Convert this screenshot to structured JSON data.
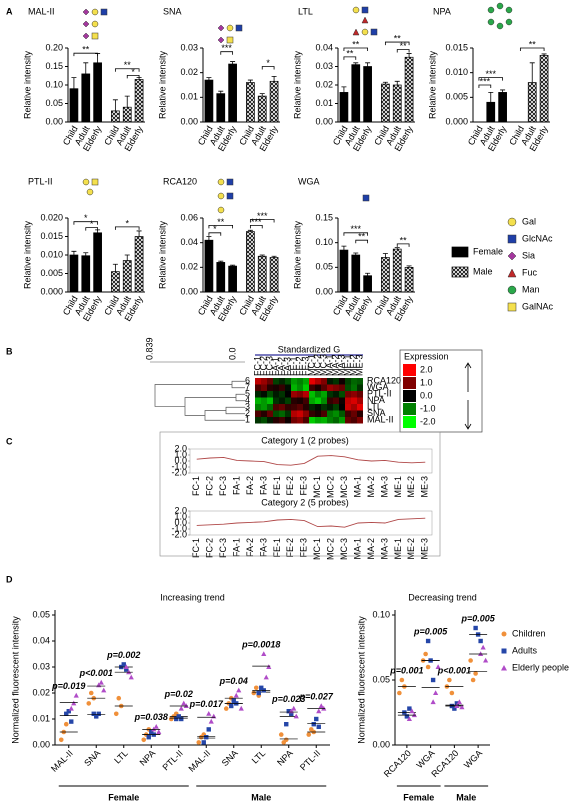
{
  "panel_labels": [
    "A",
    "B",
    "C",
    "D"
  ],
  "legend_a": {
    "series": [
      {
        "name": "Female",
        "color": "#000000"
      },
      {
        "name": "Male",
        "color": "#000000",
        "pattern": "crosshatch"
      }
    ]
  },
  "glycan_legend": [
    {
      "label": "Gal",
      "shape": "circle",
      "color": "#f4e04d"
    },
    {
      "label": "GlcNAc",
      "shape": "square",
      "color": "#1f3fa8"
    },
    {
      "label": "Sia",
      "shape": "diamond",
      "color": "#a4379e"
    },
    {
      "label": "Fuc",
      "shape": "triangle",
      "color": "#c0282a"
    },
    {
      "label": "Man",
      "shape": "circle",
      "color": "#2aa84a"
    },
    {
      "label": "GalNAc",
      "shape": "square",
      "color": "#f4e04d"
    }
  ],
  "chart_data": [
    {
      "type": "bar",
      "title": "MAL-II",
      "ylabel": "Relative intensity",
      "categories": [
        "Child",
        "Adult",
        "Elderly"
      ],
      "series": [
        {
          "color": "#000000",
          "values": [
            0.09,
            0.13,
            0.16
          ],
          "errors": [
            0.03,
            0.03,
            0.025
          ]
        },
        {
          "color": "#000000",
          "pattern": "crosshatch",
          "values": [
            0.03,
            0.04,
            0.115
          ],
          "errors": [
            0.03,
            0.03,
            0.005
          ]
        }
      ],
      "ylim": [
        0,
        0.2
      ],
      "yticks": [
        {
          "value": 0,
          "label": "0.00"
        },
        0.05,
        {
          "value": 0.1,
          "label": "0.10"
        },
        0.15,
        {
          "value": 0.2,
          "label": "0.20"
        }
      ],
      "annotations": [
        "**",
        "**",
        "*"
      ]
    },
    {
      "type": "bar",
      "title": "SNA",
      "ylabel": "Relative intensity",
      "categories": [
        "Child",
        "Adult",
        "Elderly"
      ],
      "series": [
        {
          "color": "#000000",
          "values": [
            0.017,
            0.0115,
            0.0235
          ],
          "errors": [
            0.001,
            0.001,
            0.001
          ]
        },
        {
          "color": "#000000",
          "pattern": "crosshatch",
          "values": [
            0.016,
            0.0105,
            0.0165
          ],
          "errors": [
            0.001,
            0.001,
            0.002
          ]
        }
      ],
      "ylim": [
        0,
        0.03
      ],
      "yticks": [
        {
          "value": 0,
          "label": "0.00"
        },
        0.01,
        0.02,
        0.03
      ],
      "annotations": [
        "***",
        "*"
      ]
    },
    {
      "type": "bar",
      "title": "LTL",
      "ylabel": "Relative intensity",
      "categories": [
        "Child",
        "Adult",
        "Elderly"
      ],
      "series": [
        {
          "color": "#000000",
          "values": [
            0.016,
            0.031,
            0.03
          ],
          "errors": [
            0.003,
            0.001,
            0.002
          ]
        },
        {
          "color": "#000000",
          "pattern": "crosshatch",
          "values": [
            0.0205,
            0.02,
            0.035
          ],
          "errors": [
            0.001,
            0.002,
            0.002
          ]
        }
      ],
      "ylim": [
        0,
        0.04
      ],
      "yticks": [
        {
          "value": 0,
          "label": "0.00"
        },
        0.01,
        0.02,
        0.03,
        0.04
      ],
      "annotations": [
        "**",
        "**",
        "**",
        "**"
      ]
    },
    {
      "type": "bar",
      "title": "NPA",
      "ylabel": "Relative intensity",
      "categories": [
        "Child",
        "Adult",
        "Elderly"
      ],
      "series": [
        {
          "color": "#000000",
          "values": [
            0,
            0.004,
            0.006
          ],
          "errors": [
            0,
            0.002,
            0.0005
          ]
        },
        {
          "color": "#000000",
          "pattern": "crosshatch",
          "values": [
            0,
            0.008,
            0.0135
          ],
          "errors": [
            0,
            0.004,
            0.0003
          ]
        }
      ],
      "ylim": [
        0,
        0.015
      ],
      "yticks": [
        {
          "value": 0,
          "label": "0.000"
        },
        0.005,
        {
          "value": 0.01,
          "label": "0.010"
        },
        0.015
      ],
      "annotations": [
        "***",
        "***",
        "**"
      ]
    },
    {
      "type": "bar",
      "title": "PTL-II",
      "ylabel": "Relative intensity",
      "categories": [
        "Child",
        "Adult",
        "Elderly"
      ],
      "series": [
        {
          "color": "#000000",
          "values": [
            0.01,
            0.0098,
            0.016
          ],
          "errors": [
            0.001,
            0.0008,
            0.0008
          ]
        },
        {
          "color": "#000000",
          "pattern": "crosshatch",
          "values": [
            0.0055,
            0.0085,
            0.015
          ],
          "errors": [
            0.002,
            0.0015,
            0.0015
          ]
        }
      ],
      "ylim": [
        0,
        0.02
      ],
      "yticks": [
        {
          "value": 0,
          "label": "0.000"
        },
        0.005,
        {
          "value": 0.01,
          "label": "0.010"
        },
        0.015,
        {
          "value": 0.02,
          "label": "0.020"
        }
      ],
      "annotations": [
        "*",
        "*",
        "*"
      ]
    },
    {
      "type": "bar",
      "title": "RCA120",
      "ylabel": "Relative intensity",
      "categories": [
        "Child",
        "Adult",
        "Elderly"
      ],
      "series": [
        {
          "color": "#000000",
          "values": [
            0.042,
            0.024,
            0.021
          ],
          "errors": [
            0.003,
            0.001,
            0.0008
          ]
        },
        {
          "color": "#000000",
          "pattern": "crosshatch",
          "values": [
            0.049,
            0.029,
            0.028
          ],
          "errors": [
            0.001,
            0.001,
            0.001
          ]
        }
      ],
      "ylim": [
        0,
        0.06
      ],
      "yticks": [
        {
          "value": 0,
          "label": "0.00"
        },
        0.02,
        0.04,
        0.06
      ],
      "annotations": [
        "**",
        "*",
        "***",
        "***"
      ]
    },
    {
      "type": "bar",
      "title": "WGA",
      "ylabel": "Relative intensity",
      "categories": [
        "Child",
        "Adult",
        "Elderly"
      ],
      "series": [
        {
          "color": "#000000",
          "values": [
            0.085,
            0.075,
            0.033
          ],
          "errors": [
            0.008,
            0.004,
            0.005
          ]
        },
        {
          "color": "#000000",
          "pattern": "crosshatch",
          "values": [
            0.07,
            0.087,
            0.05
          ],
          "errors": [
            0.008,
            0.003,
            0.003
          ]
        }
      ],
      "ylim": [
        0,
        0.15
      ],
      "yticks": [
        {
          "value": 0,
          "label": "0.00"
        },
        0.05,
        {
          "value": 0.1,
          "label": "0.10"
        },
        0.15
      ],
      "annotations": [
        "***",
        "**",
        "**"
      ]
    },
    {
      "type": "heatmap",
      "title": "Standardized G",
      "columns": [
        "FC-1",
        "FC-2",
        "FC-3",
        "FA-1",
        "FA-2",
        "FA-3",
        "FE-1",
        "FE-2",
        "FE-3",
        "MC-1",
        "MC-2",
        "MC-3",
        "MA-1",
        "MA-2",
        "MA-3",
        "ME-1",
        "ME-2",
        "ME-3"
      ],
      "rows": [
        "RCA120",
        "WGA",
        "PTL-II",
        "NPA",
        "LTL",
        "SNA",
        "MAL-II"
      ],
      "row_numbers": [
        "6",
        "7",
        "5",
        "4",
        "3",
        "2",
        "1"
      ],
      "values": [
        [
          1.5,
          1.2,
          0.8,
          -0.5,
          -0.3,
          -0.6,
          -1.2,
          -1.0,
          -1.3,
          1.8,
          1.4,
          1.0,
          -0.2,
          -0.4,
          0.1,
          -0.5,
          -0.8,
          -0.7
        ],
        [
          0.6,
          0.9,
          0.3,
          0.2,
          0.4,
          -0.1,
          -1.4,
          -1.1,
          -1.6,
          0.5,
          0.2,
          0.7,
          1.2,
          1.0,
          0.8,
          -0.6,
          -0.9,
          -0.4
        ],
        [
          -0.3,
          -0.1,
          -0.6,
          -0.2,
          -0.4,
          0.0,
          1.2,
          1.0,
          1.4,
          -1.5,
          -1.0,
          -1.3,
          -0.4,
          -0.2,
          -0.6,
          0.9,
          1.1,
          0.8
        ],
        [
          -1.4,
          -1.2,
          -1.5,
          -0.4,
          -0.2,
          -0.5,
          0.3,
          0.2,
          0.5,
          -1.3,
          -1.6,
          -1.1,
          0.4,
          0.6,
          0.1,
          1.5,
          1.7,
          1.3
        ],
        [
          -1.0,
          -1.2,
          -0.8,
          0.6,
          0.8,
          0.4,
          0.5,
          0.7,
          0.3,
          -0.3,
          -0.1,
          -0.4,
          -0.2,
          -0.5,
          0.0,
          1.6,
          1.3,
          1.8
        ],
        [
          0.6,
          0.3,
          0.8,
          -0.6,
          -0.8,
          -0.4,
          1.4,
          1.6,
          1.1,
          0.4,
          0.2,
          0.6,
          -0.9,
          -1.1,
          -0.7,
          0.5,
          0.8,
          0.3
        ],
        [
          -0.4,
          -0.6,
          -0.2,
          0.3,
          0.5,
          0.1,
          0.9,
          1.1,
          0.6,
          -1.6,
          -1.3,
          -1.4,
          -1.0,
          -0.8,
          -1.2,
          0.8,
          0.6,
          1.0
        ]
      ],
      "vlim": [
        -2,
        2
      ],
      "dendrogram_scale": [
        "0.839",
        "0.0"
      ],
      "legend_title": "Expression",
      "legend_ticks": [
        {
          "value": 2,
          "label": "2.0"
        },
        {
          "value": 1,
          "label": "1.0"
        },
        {
          "value": 0,
          "label": "0.0"
        },
        {
          "value": -1,
          "label": "-1.0"
        },
        {
          "value": -2,
          "label": "-2.0"
        }
      ]
    },
    {
      "type": "line",
      "title": "Category 1 (2 probes)",
      "categories": [
        "FC-1",
        "FC-2",
        "FC-3",
        "FA-1",
        "FA-2",
        "FA-3",
        "FE-1",
        "FE-2",
        "FE-3",
        "MC-1",
        "MC-2",
        "MC-3",
        "MA-1",
        "MA-2",
        "MA-3",
        "ME-1",
        "ME-2",
        "ME-3"
      ],
      "values": [
        0.3,
        0.5,
        0.6,
        0.1,
        0.0,
        -0.1,
        -0.6,
        -0.7,
        -0.4,
        0.8,
        0.9,
        0.7,
        0.2,
        0.0,
        0.1,
        -0.2,
        -0.3,
        -0.2
      ],
      "color": "#b04848",
      "ylim": [
        -2,
        2
      ],
      "yticks": [
        {
          "value": 2,
          "label": "2.0"
        },
        {
          "value": 1,
          "label": "1.0"
        },
        {
          "value": 0,
          "label": "0.0"
        },
        {
          "value": -1,
          "label": "-1.0"
        },
        {
          "value": -2,
          "label": "-2.0"
        }
      ]
    },
    {
      "type": "line",
      "title": "Category 2 (5 probes)",
      "categories": [
        "FC-1",
        "FC-2",
        "FC-3",
        "FA-1",
        "FA-2",
        "FA-3",
        "FE-1",
        "FE-2",
        "FE-3",
        "MC-1",
        "MC-2",
        "MC-3",
        "MA-1",
        "MA-2",
        "MA-3",
        "ME-1",
        "ME-2",
        "ME-3"
      ],
      "values": [
        -0.4,
        -0.3,
        -0.2,
        0.0,
        0.1,
        0.2,
        0.5,
        0.6,
        0.4,
        -0.6,
        -0.5,
        -0.7,
        0.0,
        0.1,
        0.0,
        0.6,
        0.7,
        0.8
      ],
      "color": "#b04848",
      "ylim": [
        -2,
        2
      ],
      "yticks": [
        {
          "value": 2,
          "label": "2.0"
        },
        {
          "value": 1,
          "label": "1.0"
        },
        {
          "value": 0,
          "label": "0.0"
        },
        {
          "value": -1,
          "label": "-1.0"
        },
        {
          "value": -2,
          "label": "-2.0"
        }
      ]
    },
    {
      "type": "dot",
      "title": "Increasing trend",
      "ylabel": "Normalized fluorescent intensity",
      "categories": [
        "MAL-II",
        "SNA",
        "LTL",
        "NPA",
        "PTL-II",
        "MAL-II",
        "SNA",
        "LTL",
        "NPA",
        "PTL-II"
      ],
      "groups": [
        "Female",
        "Male"
      ],
      "pvalues": [
        "p=0.019",
        "p<0.001",
        "p=0.002",
        "p=0.038",
        "p=0.02",
        "p=0.017",
        "p=0.04",
        "p=0.0018",
        "p=0.023",
        "p=0.027"
      ],
      "series": [
        {
          "color": "#f0903a",
          "marker": "circle",
          "values": [
            [
              0.002,
              0.005,
              0.008
            ],
            [
              0.016,
              0.02,
              0.018
            ],
            [
              0.012,
              0.018,
              0.015
            ],
            [
              0.002,
              0.004,
              0.006
            ],
            [
              0.01,
              0.011,
              0.012
            ],
            [
              0.001,
              0.003,
              0.004
            ],
            [
              0.014,
              0.016,
              0.018
            ],
            [
              0.02,
              0.022,
              0.019
            ],
            [
              0.004,
              0.001,
              0.002
            ],
            [
              0.004,
              0.006,
              0.005
            ]
          ]
        },
        {
          "color": "#2546a8",
          "marker": "square",
          "values": [
            [
              0.012,
              0.013,
              0.009
            ],
            [
              0.012,
              0.011,
              0.012
            ],
            [
              0.03,
              0.031,
              0.029
            ],
            [
              0.003,
              0.005,
              0.004
            ],
            [
              0.01,
              0.011,
              0.01
            ],
            [
              0.001,
              0.003,
              0.006
            ],
            [
              0.015,
              0.017,
              0.016
            ],
            [
              0.02,
              0.022,
              0.021
            ],
            [
              0.008,
              0.013,
              0.012
            ],
            [
              0.008,
              0.01,
              0.007
            ]
          ]
        },
        {
          "color": "#b04cc8",
          "marker": "triangle",
          "values": [
            [
              0.014,
              0.016,
              0.019
            ],
            [
              0.023,
              0.024,
              0.021
            ],
            [
              0.03,
              0.028,
              0.026
            ],
            [
              0.006,
              0.007,
              0.005
            ],
            [
              0.014,
              0.016,
              0.015
            ],
            [
              0.012,
              0.009,
              0.011
            ],
            [
              0.019,
              0.021,
              0.014
            ],
            [
              0.035,
              0.026,
              0.03
            ],
            [
              0.013,
              0.014,
              0.011
            ],
            [
              0.013,
              0.015,
              0.014
            ]
          ]
        }
      ],
      "ylim": [
        0,
        0.05
      ],
      "yticks": [
        {
          "value": 0,
          "label": "0.00"
        },
        0.01,
        0.02,
        0.03,
        0.04,
        0.05
      ]
    },
    {
      "type": "dot",
      "title": "Decreasing trend",
      "ylabel": "Normalized fluorescent intensity",
      "categories": [
        "RCA120",
        "WGA",
        "RCA120",
        "WGA"
      ],
      "groups": [
        "Female",
        "Male"
      ],
      "pvalues": [
        "p=0.001",
        "p=0.005",
        "p<0.001",
        "p=0.005"
      ],
      "series": [
        {
          "name": "Children",
          "color": "#f0903a",
          "marker": "circle",
          "values": [
            [
              0.04,
              0.05,
              0.045
            ],
            [
              0.065,
              0.07,
              0.06
            ],
            [
              0.045,
              0.05,
              0.04
            ],
            [
              0.065,
              0.05,
              0.055
            ]
          ]
        },
        {
          "name": "Adults",
          "color": "#2546a8",
          "marker": "square",
          "values": [
            [
              0.025,
              0.022,
              0.028
            ],
            [
              0.08,
              0.065,
              0.05
            ],
            [
              0.03,
              0.028,
              0.032
            ],
            [
              0.09,
              0.085,
              0.08
            ]
          ]
        },
        {
          "name": "Elderly people",
          "color": "#b04cc8",
          "marker": "triangle",
          "values": [
            [
              0.02,
              0.026,
              0.023
            ],
            [
              0.033,
              0.04,
              0.06
            ],
            [
              0.03,
              0.033,
              0.029
            ],
            [
              0.07,
              0.075,
              0.065
            ]
          ]
        }
      ],
      "ylim": [
        0,
        0.1
      ],
      "yticks": [
        {
          "value": 0,
          "label": "0.00"
        },
        0.05,
        {
          "value": 0.1,
          "label": "0.10"
        }
      ]
    }
  ]
}
